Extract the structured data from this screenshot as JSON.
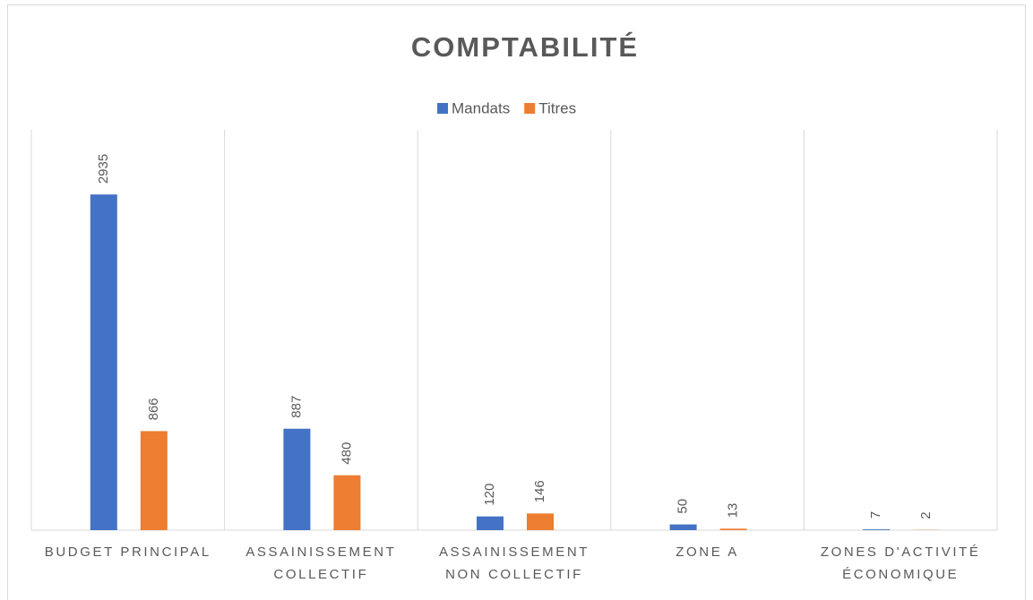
{
  "chart_data": {
    "type": "bar",
    "title": "COMPTABILITÉ",
    "categories": [
      "BUDGET PRINCIPAL",
      "ASSAINISSEMENT COLLECTIF",
      "ASSAINISSEMENT NON COLLECTIF",
      "ZONE A",
      "ZONES D'ACTIVITÉ ÉCONOMIQUE"
    ],
    "series": [
      {
        "name": "Mandats",
        "color": "#4472c4",
        "values": [
          2935,
          887,
          120,
          50,
          7
        ]
      },
      {
        "name": "Titres",
        "color": "#ed7d31",
        "values": [
          866,
          480,
          146,
          13,
          2
        ]
      }
    ],
    "ylim": [
      0,
      3500
    ],
    "legend": "top"
  }
}
